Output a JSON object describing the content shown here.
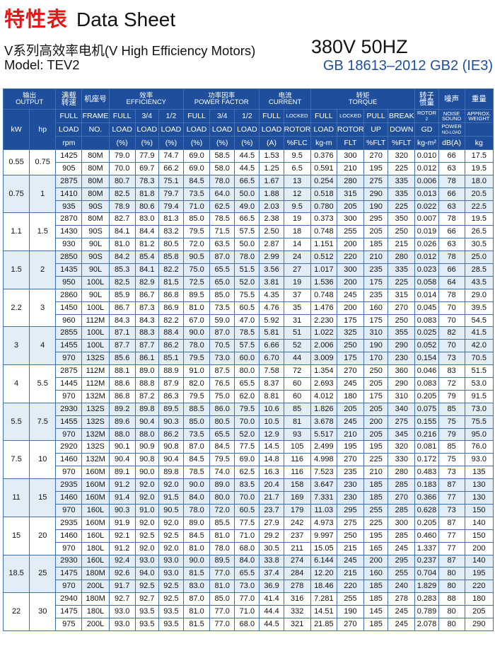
{
  "header": {
    "title_cn": "特性表",
    "title_en": "Data Sheet",
    "subtitle": "V系列高效率电机(V High Efficiency Motors)",
    "model": "Model: TEV2",
    "voltage": "380V  50HZ",
    "standard": "GB 18613–2012 GB2 (IE3)"
  },
  "table": {
    "head": {
      "output": [
        "输出",
        "OUTPUT"
      ],
      "speed": [
        "满载",
        "转速"
      ],
      "frame": "机座号",
      "efficiency": [
        "效率",
        "EFFICIENCY"
      ],
      "power_factor": [
        "功率因率",
        "POWER FACTOR"
      ],
      "current": [
        "电流",
        "CURRENT"
      ],
      "torque": [
        "转矩",
        "TORQUE"
      ],
      "rotor": [
        "转子",
        "惯量"
      ],
      "noise": "噪声",
      "weight": "重量",
      "row2": {
        "kw": "kW",
        "hp": "hp",
        "speed": [
          "FULL",
          "LOAD",
          "rpm"
        ],
        "frame": [
          "FRAME",
          "NO."
        ],
        "eff_full": [
          "FULL",
          "LOAD",
          "(%)"
        ],
        "eff_34": [
          "3/4",
          "LOAD",
          "(%)"
        ],
        "eff_12": [
          "1/2",
          "LOAD",
          "(%)"
        ],
        "pf_full": [
          "FULL",
          "LOAD",
          "(%)"
        ],
        "pf_34": [
          "3/4",
          "LOAD",
          "(%)"
        ],
        "pf_12": [
          "1/2",
          "LOAD",
          "(%)"
        ],
        "cur_full": [
          "FULL",
          "LOAD",
          "(A)"
        ],
        "cur_locked": [
          "LOCKED",
          "ROTOR",
          "%FLC"
        ],
        "tq_full": [
          "FULL",
          "LOAD",
          "kg-m"
        ],
        "tq_locked": [
          "LOCKED",
          "ROTOR",
          "FLT"
        ],
        "tq_pull": [
          "PULL",
          "UP",
          "%FLT"
        ],
        "tq_break": [
          "BREAK",
          "DOWN",
          "%FLT"
        ],
        "rotor": [
          "ROTOR",
          "2",
          "GD",
          "kg-m²"
        ],
        "noise": [
          "NOISE",
          "SOUND",
          "POWER",
          "NO-LOAD",
          "dB(A)"
        ],
        "weight": [
          "APPROX.",
          "WEIGHT",
          "kg"
        ]
      }
    },
    "groups": [
      {
        "kw": "0.55",
        "hp": "0.75",
        "rows": [
          [
            "1425",
            "80M",
            "79.0",
            "77.9",
            "74.7",
            "69.0",
            "58.5",
            "44.5",
            "1.53",
            "9.5",
            "0.376",
            "300",
            "270",
            "320",
            "0.010",
            "66",
            "17.5"
          ],
          [
            "905",
            "80M",
            "70.0",
            "69.7",
            "66.2",
            "69.0",
            "58.0",
            "44.5",
            "1.25",
            "6.5",
            "0.591",
            "210",
            "195",
            "225",
            "0.012",
            "63",
            "19.5"
          ]
        ]
      },
      {
        "kw": "0.75",
        "hp": "1",
        "rows": [
          [
            "2875",
            "80M",
            "80.7",
            "78.3",
            "75.1",
            "84.5",
            "78.0",
            "66.5",
            "1.67",
            "13",
            "0.254",
            "280",
            "275",
            "335",
            "0.006",
            "78",
            "18.0"
          ],
          [
            "1410",
            "80M",
            "82.5",
            "81.8",
            "79.7",
            "73.5",
            "64.0",
            "50.0",
            "1.88",
            "12",
            "0.518",
            "315",
            "290",
            "335",
            "0.013",
            "66",
            "20.5"
          ],
          [
            "935",
            "90S",
            "78.9",
            "80.6",
            "79.4",
            "71.0",
            "62.5",
            "49.0",
            "2.03",
            "9.5",
            "0.780",
            "205",
            "190",
            "225",
            "0.022",
            "63",
            "22.5"
          ]
        ]
      },
      {
        "kw": "1.1",
        "hp": "1.5",
        "rows": [
          [
            "2870",
            "80M",
            "82.7",
            "83.0",
            "81.3",
            "85.0",
            "78.5",
            "66.5",
            "2.38",
            "19",
            "0.373",
            "300",
            "295",
            "350",
            "0.007",
            "78",
            "19.5"
          ],
          [
            "1430",
            "90S",
            "84.1",
            "84.4",
            "83.2",
            "79.5",
            "71.5",
            "57.5",
            "2.50",
            "18",
            "0.748",
            "255",
            "205",
            "250",
            "0.019",
            "66",
            "26.5"
          ],
          [
            "930",
            "90L",
            "81.0",
            "81.2",
            "80.5",
            "72.0",
            "63.5",
            "50.0",
            "2.87",
            "14",
            "1.151",
            "200",
            "185",
            "215",
            "0.026",
            "63",
            "30.5"
          ]
        ]
      },
      {
        "kw": "1.5",
        "hp": "2",
        "rows": [
          [
            "2850",
            "90S",
            "84.2",
            "85.4",
            "85.8",
            "90.5",
            "87.0",
            "78.0",
            "2.99",
            "24",
            "0.512",
            "220",
            "210",
            "280",
            "0.012",
            "78",
            "25.0"
          ],
          [
            "1435",
            "90L",
            "85.3",
            "84.1",
            "82.2",
            "75.0",
            "65.5",
            "51.5",
            "3.56",
            "27",
            "1.017",
            "300",
            "235",
            "335",
            "0.023",
            "66",
            "28.5"
          ],
          [
            "950",
            "100L",
            "82.5",
            "82.9",
            "81.5",
            "72.5",
            "65.0",
            "52.0",
            "3.81",
            "19",
            "1.536",
            "200",
            "175",
            "225",
            "0.058",
            "64",
            "43.5"
          ]
        ]
      },
      {
        "kw": "2.2",
        "hp": "3",
        "rows": [
          [
            "2860",
            "90L",
            "85.9",
            "86.7",
            "86.8",
            "89.5",
            "85.0",
            "75.5",
            "4.35",
            "37",
            "0.748",
            "245",
            "235",
            "315",
            "0.014",
            "78",
            "29.0"
          ],
          [
            "1450",
            "100L",
            "86.7",
            "87.3",
            "86.9",
            "81.0",
            "73.5",
            "60.5",
            "4.76",
            "35",
            "1.476",
            "200",
            "160",
            "270",
            "0.045",
            "70",
            "39.5"
          ],
          [
            "960",
            "112M",
            "84.3",
            "84.3",
            "82.2",
            "67.0",
            "59.0",
            "47.0",
            "5.92",
            "31",
            "2.230",
            "175",
            "175",
            "250",
            "0.083",
            "70",
            "54.5"
          ]
        ]
      },
      {
        "kw": "3",
        "hp": "4",
        "rows": [
          [
            "2855",
            "100L",
            "87.1",
            "88.3",
            "88.4",
            "90.0",
            "87.0",
            "78.5",
            "5.81",
            "51",
            "1.022",
            "325",
            "310",
            "355",
            "0.025",
            "82",
            "41.5"
          ],
          [
            "1455",
            "100L",
            "87.7",
            "87.7",
            "86.2",
            "78.0",
            "70.5",
            "57.5",
            "6.66",
            "52",
            "2.006",
            "250",
            "190",
            "290",
            "0.052",
            "70",
            "42.0"
          ],
          [
            "970",
            "132S",
            "85.6",
            "86.1",
            "85.1",
            "79.5",
            "73.0",
            "60.0",
            "6.70",
            "44",
            "3.009",
            "175",
            "170",
            "230",
            "0.154",
            "73",
            "70.5"
          ]
        ]
      },
      {
        "kw": "4",
        "hp": "5.5",
        "rows": [
          [
            "2875",
            "112M",
            "88.1",
            "89.0",
            "88.9",
            "91.0",
            "87.5",
            "80.0",
            "7.58",
            "72",
            "1.354",
            "270",
            "250",
            "360",
            "0.046",
            "83",
            "51.5"
          ],
          [
            "1445",
            "112M",
            "88.6",
            "88.8",
            "87.9",
            "82.0",
            "76.5",
            "65.5",
            "8.37",
            "60",
            "2.693",
            "245",
            "205",
            "290",
            "0.083",
            "72",
            "53.0"
          ],
          [
            "970",
            "132M",
            "86.8",
            "87.2",
            "86.3",
            "79.5",
            "75.0",
            "62.0",
            "8.81",
            "60",
            "4.012",
            "180",
            "175",
            "310",
            "0.205",
            "79",
            "91.5"
          ]
        ]
      },
      {
        "kw": "5.5",
        "hp": "7.5",
        "rows": [
          [
            "2930",
            "132S",
            "89.2",
            "89.8",
            "89.5",
            "88.5",
            "86.0",
            "79.5",
            "10.6",
            "85",
            "1.826",
            "205",
            "205",
            "340",
            "0.075",
            "85",
            "73.0"
          ],
          [
            "1455",
            "132S",
            "89.6",
            "90.4",
            "90.3",
            "85.0",
            "80.5",
            "70.0",
            "10.5",
            "81",
            "3.678",
            "245",
            "200",
            "275",
            "0.155",
            "75",
            "75.5"
          ],
          [
            "970",
            "132M",
            "88.0",
            "88.0",
            "86.2",
            "73.5",
            "65.5",
            "52.0",
            "12.9",
            "93",
            "5.517",
            "210",
            "205",
            "345",
            "0.216",
            "79",
            "95.0"
          ]
        ]
      },
      {
        "kw": "7.5",
        "hp": "10",
        "rows": [
          [
            "2920",
            "132S",
            "90.1",
            "90.9",
            "90.8",
            "87.0",
            "84.5",
            "77.5",
            "14.5",
            "105",
            "2.499",
            "195",
            "195",
            "320",
            "0.081",
            "85",
            "76.0"
          ],
          [
            "1460",
            "132M",
            "90.4",
            "90.8",
            "90.4",
            "84.5",
            "79.5",
            "69.0",
            "14.8",
            "116",
            "4.998",
            "270",
            "225",
            "330",
            "0.172",
            "75",
            "93.0"
          ],
          [
            "970",
            "160M",
            "89.1",
            "90.0",
            "89.8",
            "78.5",
            "74.0",
            "62.5",
            "16.3",
            "116",
            "7.523",
            "235",
            "210",
            "280",
            "0.483",
            "73",
            "135"
          ]
        ]
      },
      {
        "kw": "11",
        "hp": "15",
        "rows": [
          [
            "2935",
            "160M",
            "91.2",
            "92.0",
            "92.0",
            "90.0",
            "89.0",
            "83.5",
            "20.4",
            "158",
            "3.647",
            "230",
            "185",
            "285",
            "0.183",
            "87",
            "130"
          ],
          [
            "1460",
            "160M",
            "91.4",
            "92.0",
            "91.5",
            "84.0",
            "80.0",
            "70.0",
            "21.7",
            "169",
            "7.331",
            "230",
            "185",
            "270",
            "0.366",
            "77",
            "130"
          ],
          [
            "970",
            "160L",
            "90.3",
            "91.0",
            "90.5",
            "78.0",
            "72.0",
            "60.5",
            "23.7",
            "179",
            "11.03",
            "295",
            "255",
            "285",
            "0.628",
            "73",
            "150"
          ]
        ]
      },
      {
        "kw": "15",
        "hp": "20",
        "rows": [
          [
            "2935",
            "160M",
            "91.9",
            "92.0",
            "92.0",
            "89.0",
            "85.5",
            "77.5",
            "27.9",
            "242",
            "4.973",
            "275",
            "225",
            "300",
            "0.205",
            "87",
            "140"
          ],
          [
            "1460",
            "160L",
            "92.1",
            "92.5",
            "92.5",
            "84.5",
            "81.0",
            "71.0",
            "29.2",
            "237",
            "9.997",
            "250",
            "195",
            "285",
            "0.460",
            "77",
            "150"
          ],
          [
            "970",
            "180L",
            "91.2",
            "92.0",
            "92.0",
            "81.0",
            "78.0",
            "68.0",
            "30.5",
            "211",
            "15.05",
            "215",
            "165",
            "245",
            "1.337",
            "77",
            "200"
          ]
        ]
      },
      {
        "kw": "18.5",
        "hp": "25",
        "rows": [
          [
            "2930",
            "160L",
            "92.4",
            "93.0",
            "93.0",
            "90.0",
            "89.5",
            "84.0",
            "33.8",
            "274",
            "6.144",
            "245",
            "200",
            "295",
            "0.237",
            "87",
            "140"
          ],
          [
            "1475",
            "180M",
            "92.6",
            "94.0",
            "93.0",
            "81.5",
            "77.0",
            "65.5",
            "37.4",
            "284",
            "12.20",
            "215",
            "160",
            "255",
            "0.704",
            "80",
            "195"
          ],
          [
            "970",
            "200L",
            "91.7",
            "92.5",
            "92.5",
            "83.0",
            "81.0",
            "73.0",
            "36.9",
            "278",
            "18.46",
            "220",
            "185",
            "240",
            "1.829",
            "80",
            "220"
          ]
        ]
      },
      {
        "kw": "22",
        "hp": "30",
        "rows": [
          [
            "2940",
            "180M",
            "92.7",
            "92.7",
            "92.5",
            "87.0",
            "85.0",
            "77.0",
            "41.4",
            "316",
            "7.281",
            "255",
            "185",
            "278",
            "0.283",
            "88",
            "180"
          ],
          [
            "1475",
            "180L",
            "93.0",
            "93.5",
            "93.5",
            "81.0",
            "77.0",
            "71.0",
            "44.4",
            "332",
            "14.51",
            "190",
            "145",
            "245",
            "0.789",
            "80",
            "205"
          ],
          [
            "975",
            "200L",
            "93.0",
            "93.5",
            "93.5",
            "81.5",
            "77.0",
            "68.0",
            "44.5",
            "321",
            "21.85",
            "270",
            "185",
            "245",
            "2.078",
            "80",
            "290"
          ]
        ]
      }
    ]
  }
}
